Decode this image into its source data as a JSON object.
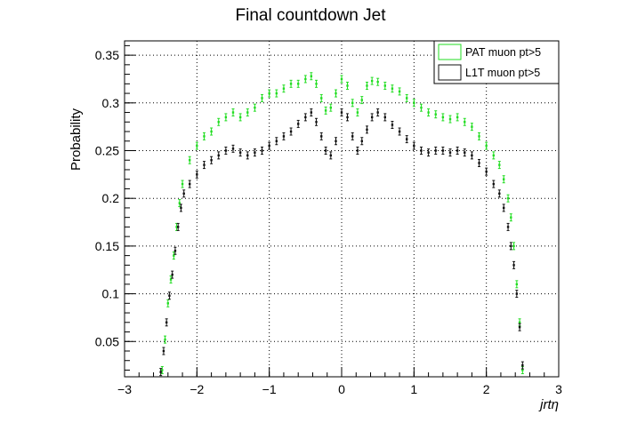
{
  "chart_data": {
    "type": "scatter",
    "title": "Final countdown Jet",
    "xlabel": "jrtη",
    "ylabel": "Probability",
    "xlim": [
      -3,
      3
    ],
    "ylim": [
      0.013,
      0.365
    ],
    "x_ticks": [
      -3,
      -2,
      -1,
      0,
      1,
      2,
      3
    ],
    "x_tick_labels": [
      "−3",
      "−2",
      "−1",
      "0",
      "1",
      "2",
      "3"
    ],
    "y_ticks": [
      0.05,
      0.1,
      0.15,
      0.2,
      0.25,
      0.3,
      0.35
    ],
    "y_tick_labels": [
      "0.05",
      "0.1",
      "0.15",
      "0.2",
      "0.25",
      "0.3",
      "0.35"
    ],
    "grid": true,
    "legend_position": "top-right",
    "series": [
      {
        "name": "PAT muon pt>5",
        "color": "#22dd22",
        "points": [
          [
            -2.48,
            0.02
          ],
          [
            -2.44,
            0.052
          ],
          [
            -2.4,
            0.09
          ],
          [
            -2.36,
            0.115
          ],
          [
            -2.32,
            0.14
          ],
          [
            -2.28,
            0.17
          ],
          [
            -2.24,
            0.195
          ],
          [
            -2.2,
            0.215
          ],
          [
            -2.1,
            0.24
          ],
          [
            -2.0,
            0.255
          ],
          [
            -1.9,
            0.265
          ],
          [
            -1.8,
            0.27
          ],
          [
            -1.7,
            0.28
          ],
          [
            -1.6,
            0.285
          ],
          [
            -1.5,
            0.29
          ],
          [
            -1.4,
            0.285
          ],
          [
            -1.3,
            0.29
          ],
          [
            -1.2,
            0.295
          ],
          [
            -1.1,
            0.305
          ],
          [
            -1.0,
            0.31
          ],
          [
            -0.9,
            0.31
          ],
          [
            -0.8,
            0.315
          ],
          [
            -0.7,
            0.32
          ],
          [
            -0.6,
            0.32
          ],
          [
            -0.5,
            0.325
          ],
          [
            -0.42,
            0.328
          ],
          [
            -0.35,
            0.32
          ],
          [
            -0.28,
            0.305
          ],
          [
            -0.22,
            0.292
          ],
          [
            -0.15,
            0.295
          ],
          [
            -0.08,
            0.31
          ],
          [
            0.0,
            0.325
          ],
          [
            0.08,
            0.318
          ],
          [
            0.15,
            0.3
          ],
          [
            0.22,
            0.29
          ],
          [
            0.28,
            0.303
          ],
          [
            0.35,
            0.318
          ],
          [
            0.42,
            0.323
          ],
          [
            0.5,
            0.322
          ],
          [
            0.6,
            0.318
          ],
          [
            0.7,
            0.315
          ],
          [
            0.8,
            0.312
          ],
          [
            0.9,
            0.305
          ],
          [
            1.0,
            0.3
          ],
          [
            1.1,
            0.295
          ],
          [
            1.2,
            0.29
          ],
          [
            1.3,
            0.288
          ],
          [
            1.4,
            0.285
          ],
          [
            1.5,
            0.283
          ],
          [
            1.6,
            0.285
          ],
          [
            1.7,
            0.28
          ],
          [
            1.8,
            0.275
          ],
          [
            1.9,
            0.265
          ],
          [
            2.0,
            0.255
          ],
          [
            2.1,
            0.245
          ],
          [
            2.18,
            0.235
          ],
          [
            2.24,
            0.22
          ],
          [
            2.3,
            0.2
          ],
          [
            2.34,
            0.18
          ],
          [
            2.38,
            0.15
          ],
          [
            2.42,
            0.11
          ],
          [
            2.46,
            0.07
          ],
          [
            2.5,
            0.02
          ]
        ]
      },
      {
        "name": "L1T muon pt>5",
        "color": "#111111",
        "points": [
          [
            -2.5,
            0.018
          ],
          [
            -2.46,
            0.04
          ],
          [
            -2.42,
            0.07
          ],
          [
            -2.38,
            0.098
          ],
          [
            -2.34,
            0.12
          ],
          [
            -2.3,
            0.145
          ],
          [
            -2.26,
            0.17
          ],
          [
            -2.22,
            0.19
          ],
          [
            -2.18,
            0.205
          ],
          [
            -2.1,
            0.215
          ],
          [
            -2.0,
            0.225
          ],
          [
            -1.9,
            0.235
          ],
          [
            -1.8,
            0.24
          ],
          [
            -1.7,
            0.245
          ],
          [
            -1.6,
            0.25
          ],
          [
            -1.5,
            0.252
          ],
          [
            -1.4,
            0.248
          ],
          [
            -1.3,
            0.245
          ],
          [
            -1.2,
            0.248
          ],
          [
            -1.1,
            0.25
          ],
          [
            -1.0,
            0.255
          ],
          [
            -0.9,
            0.26
          ],
          [
            -0.8,
            0.265
          ],
          [
            -0.7,
            0.27
          ],
          [
            -0.6,
            0.278
          ],
          [
            -0.5,
            0.285
          ],
          [
            -0.42,
            0.29
          ],
          [
            -0.35,
            0.28
          ],
          [
            -0.28,
            0.265
          ],
          [
            -0.22,
            0.25
          ],
          [
            -0.15,
            0.245
          ],
          [
            -0.08,
            0.26
          ],
          [
            0.0,
            0.29
          ],
          [
            0.08,
            0.285
          ],
          [
            0.15,
            0.265
          ],
          [
            0.22,
            0.25
          ],
          [
            0.28,
            0.26
          ],
          [
            0.35,
            0.272
          ],
          [
            0.42,
            0.285
          ],
          [
            0.5,
            0.29
          ],
          [
            0.6,
            0.285
          ],
          [
            0.7,
            0.277
          ],
          [
            0.8,
            0.27
          ],
          [
            0.9,
            0.262
          ],
          [
            1.0,
            0.255
          ],
          [
            1.1,
            0.25
          ],
          [
            1.2,
            0.248
          ],
          [
            1.3,
            0.25
          ],
          [
            1.4,
            0.25
          ],
          [
            1.5,
            0.248
          ],
          [
            1.6,
            0.25
          ],
          [
            1.7,
            0.248
          ],
          [
            1.8,
            0.245
          ],
          [
            1.9,
            0.237
          ],
          [
            2.0,
            0.228
          ],
          [
            2.1,
            0.215
          ],
          [
            2.18,
            0.205
          ],
          [
            2.24,
            0.19
          ],
          [
            2.3,
            0.17
          ],
          [
            2.34,
            0.15
          ],
          [
            2.38,
            0.13
          ],
          [
            2.42,
            0.1
          ],
          [
            2.46,
            0.065
          ],
          [
            2.5,
            0.025
          ]
        ]
      }
    ]
  }
}
